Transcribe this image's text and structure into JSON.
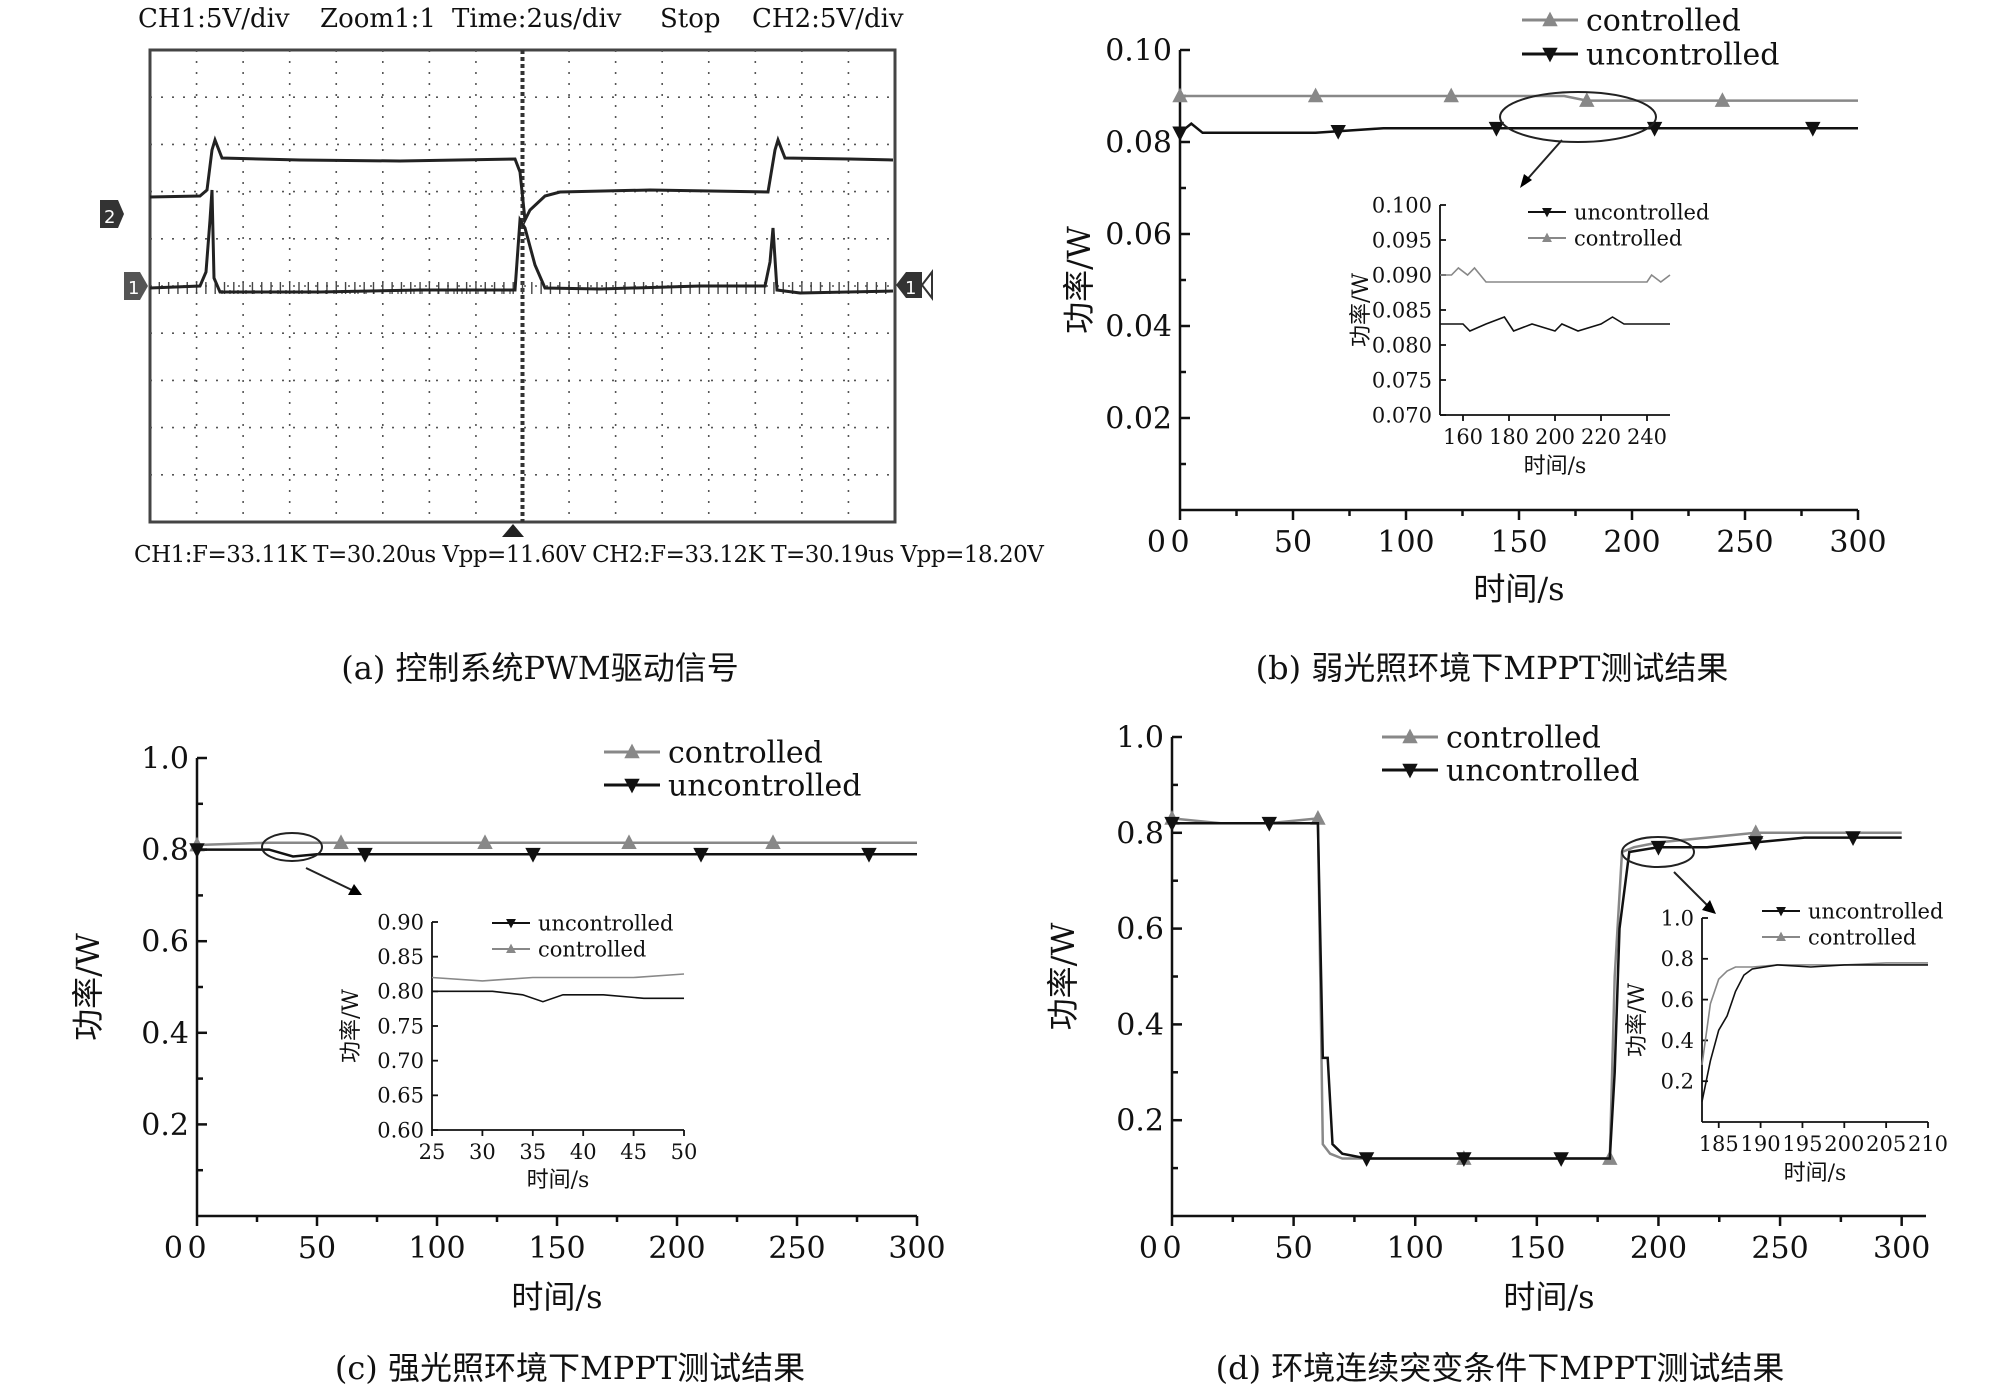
{
  "figure": {
    "captions": {
      "a": "(a) 控制系统PWM驱动信号",
      "b": "(b) 弱光照环境下MPPT测试结果",
      "c": "(c) 强光照环境下MPPT测试结果",
      "d": "(d) 环境连续突变条件下MPPT测试结果"
    }
  },
  "scope": {
    "top_labels": [
      "CH1:5V/div",
      "Zoom1:1",
      "Time:2us/div",
      "Stop",
      "CH2:5V/div"
    ],
    "bottom_label": "CH1:F=33.11K T=30.20us Vpp=11.60V  CH2:F=33.12K T=30.19us Vpp=18.20V",
    "ch1_marker": "1",
    "ch2_marker": "2",
    "right_marker": "1",
    "trace_color": "#222222",
    "grid_color": "#555555"
  },
  "colors": {
    "controlled": "#888888",
    "uncontrolled": "#111111",
    "axis": "#111111"
  },
  "chart_data": [
    {
      "id": "b",
      "type": "line",
      "xlabel": "时间/s",
      "ylabel": "功率/W",
      "xlim": [
        0,
        300
      ],
      "ylim": [
        0,
        0.1
      ],
      "xticks": [
        0,
        50,
        100,
        150,
        200,
        250,
        300
      ],
      "yticks": [
        0.02,
        0.04,
        0.06,
        0.08,
        0.1
      ],
      "ytick_labels": [
        "0.02",
        "0.04",
        "0.06",
        "0.08",
        "0.10"
      ],
      "legend": "top",
      "series": [
        {
          "name": "controlled",
          "marker": "triangle-up",
          "x": [
            0,
            20,
            40,
            60,
            80,
            100,
            120,
            140,
            160,
            170,
            180,
            200,
            220,
            240,
            260,
            280,
            300
          ],
          "y": [
            0.09,
            0.09,
            0.09,
            0.09,
            0.09,
            0.09,
            0.09,
            0.09,
            0.09,
            0.09,
            0.089,
            0.089,
            0.089,
            0.089,
            0.089,
            0.089,
            0.089
          ],
          "marker_x": [
            0,
            60,
            120,
            180,
            240
          ]
        },
        {
          "name": "uncontrolled",
          "marker": "triangle-down",
          "x": [
            0,
            5,
            10,
            30,
            60,
            90,
            120,
            150,
            180,
            210,
            240,
            270,
            300
          ],
          "y": [
            0.082,
            0.084,
            0.082,
            0.082,
            0.082,
            0.083,
            0.083,
            0.083,
            0.083,
            0.083,
            0.083,
            0.083,
            0.083
          ],
          "marker_x": [
            0,
            70,
            140,
            210,
            280
          ]
        }
      ],
      "inset": {
        "xlabel": "时间/s",
        "ylabel": "功率/W",
        "xlim": [
          150,
          250
        ],
        "ylim": [
          0.07,
          0.1
        ],
        "xticks": [
          160,
          180,
          200,
          220,
          240
        ],
        "yticks": [
          0.07,
          0.075,
          0.08,
          0.085,
          0.09,
          0.095,
          0.1
        ],
        "ytick_labels": [
          "0.070",
          "0.075",
          "0.080",
          "0.085",
          "0.090",
          "0.095",
          "0.100"
        ],
        "legend_order": [
          "uncontrolled",
          "controlled"
        ],
        "series": [
          {
            "name": "controlled",
            "x": [
              150,
              155,
              158,
              162,
              165,
              170,
              180,
              200,
              210,
              240,
              242,
              246,
              250
            ],
            "y": [
              0.09,
              0.09,
              0.091,
              0.09,
              0.091,
              0.089,
              0.089,
              0.089,
              0.089,
              0.089,
              0.09,
              0.089,
              0.09
            ]
          },
          {
            "name": "uncontrolled",
            "x": [
              150,
              160,
              163,
              170,
              178,
              182,
              190,
              200,
              203,
              210,
              220,
              225,
              230,
              240,
              250
            ],
            "y": [
              0.083,
              0.083,
              0.082,
              0.083,
              0.084,
              0.082,
              0.083,
              0.082,
              0.083,
              0.082,
              0.083,
              0.084,
              0.083,
              0.083,
              0.083
            ]
          }
        ]
      }
    },
    {
      "id": "c",
      "type": "line",
      "xlabel": "时间/s",
      "ylabel": "功率/W",
      "xlim": [
        0,
        300
      ],
      "ylim": [
        0,
        1.0
      ],
      "xticks": [
        0,
        50,
        100,
        150,
        200,
        250,
        300
      ],
      "yticks": [
        0.2,
        0.4,
        0.6,
        0.8,
        1.0
      ],
      "ytick_labels": [
        "0.2",
        "0.4",
        "0.6",
        "0.8",
        "1.0"
      ],
      "legend": "top-right",
      "series": [
        {
          "name": "controlled",
          "marker": "triangle-up",
          "x": [
            0,
            30,
            60,
            90,
            120,
            150,
            180,
            210,
            240,
            270,
            300
          ],
          "y": [
            0.81,
            0.815,
            0.815,
            0.815,
            0.815,
            0.815,
            0.815,
            0.815,
            0.815,
            0.815,
            0.815
          ],
          "marker_x": [
            0,
            60,
            120,
            180,
            240
          ]
        },
        {
          "name": "uncontrolled",
          "marker": "triangle-down",
          "x": [
            0,
            10,
            30,
            40,
            50,
            70,
            100,
            130,
            160,
            190,
            220,
            250,
            280,
            300
          ],
          "y": [
            0.8,
            0.8,
            0.8,
            0.785,
            0.79,
            0.79,
            0.79,
            0.79,
            0.79,
            0.79,
            0.79,
            0.79,
            0.79,
            0.79
          ],
          "marker_x": [
            0,
            70,
            140,
            210,
            280
          ]
        }
      ],
      "inset": {
        "xlabel": "时间/s",
        "ylabel": "功率/W",
        "xlim": [
          25,
          50
        ],
        "ylim": [
          0.6,
          0.9
        ],
        "xticks": [
          25,
          30,
          35,
          40,
          45,
          50
        ],
        "yticks": [
          0.6,
          0.65,
          0.7,
          0.75,
          0.8,
          0.85,
          0.9
        ],
        "ytick_labels": [
          "0.60",
          "0.65",
          "0.70",
          "0.75",
          "0.80",
          "0.85",
          "0.90"
        ],
        "legend_order": [
          "uncontrolled",
          "controlled"
        ],
        "series": [
          {
            "name": "controlled",
            "x": [
              25,
              30,
              35,
              40,
              45,
              50
            ],
            "y": [
              0.82,
              0.815,
              0.82,
              0.82,
              0.82,
              0.825
            ]
          },
          {
            "name": "uncontrolled",
            "x": [
              25,
              28,
              31,
              34,
              36,
              38,
              42,
              46,
              50
            ],
            "y": [
              0.8,
              0.8,
              0.8,
              0.795,
              0.785,
              0.795,
              0.795,
              0.79,
              0.79
            ]
          }
        ]
      }
    },
    {
      "id": "d",
      "type": "line",
      "xlabel": "时间/s",
      "ylabel": "功率/W",
      "xlim": [
        0,
        310
      ],
      "ylim": [
        0,
        1.0
      ],
      "xticks": [
        0,
        50,
        100,
        150,
        200,
        250,
        300
      ],
      "yticks": [
        0.2,
        0.4,
        0.6,
        0.8,
        1.0
      ],
      "ytick_labels": [
        "0.2",
        "0.4",
        "0.6",
        "0.8",
        "1.0"
      ],
      "legend": "top",
      "series": [
        {
          "name": "controlled",
          "marker": "triangle-up",
          "x": [
            0,
            20,
            40,
            60,
            62,
            65,
            70,
            80,
            100,
            120,
            140,
            160,
            180,
            182,
            185,
            190,
            200,
            220,
            240,
            260,
            280,
            300
          ],
          "y": [
            0.83,
            0.82,
            0.82,
            0.83,
            0.15,
            0.13,
            0.12,
            0.12,
            0.12,
            0.12,
            0.12,
            0.12,
            0.12,
            0.5,
            0.76,
            0.77,
            0.78,
            0.79,
            0.8,
            0.8,
            0.8,
            0.8
          ],
          "marker_x": [
            0,
            60,
            120,
            180,
            240
          ]
        },
        {
          "name": "uncontrolled",
          "marker": "triangle-down",
          "x": [
            0,
            20,
            40,
            60,
            62,
            64,
            66,
            70,
            80,
            100,
            120,
            140,
            160,
            180,
            182,
            184,
            188,
            200,
            220,
            240,
            260,
            280,
            300
          ],
          "y": [
            0.82,
            0.82,
            0.82,
            0.82,
            0.33,
            0.33,
            0.15,
            0.13,
            0.12,
            0.12,
            0.12,
            0.12,
            0.12,
            0.12,
            0.3,
            0.6,
            0.76,
            0.77,
            0.77,
            0.78,
            0.79,
            0.79,
            0.79
          ],
          "marker_x": [
            0,
            40,
            80,
            120,
            160,
            200,
            240,
            280
          ]
        }
      ],
      "inset": {
        "xlabel": "时间/s",
        "ylabel": "功率/W",
        "xlim": [
          183,
          210
        ],
        "ylim": [
          0.0,
          1.0
        ],
        "xticks": [
          185,
          190,
          195,
          200,
          205,
          210
        ],
        "yticks": [
          0.2,
          0.4,
          0.6,
          0.8,
          1.0
        ],
        "ytick_labels": [
          "0.2",
          "0.4",
          "0.6",
          "0.8",
          "1.0"
        ],
        "legend_order": [
          "uncontrolled",
          "controlled"
        ],
        "series": [
          {
            "name": "controlled",
            "x": [
              183,
              184,
              185,
              186,
              187,
              189,
              192,
              196,
              200,
              205,
              210
            ],
            "y": [
              0.28,
              0.58,
              0.7,
              0.74,
              0.76,
              0.76,
              0.77,
              0.77,
              0.77,
              0.78,
              0.78
            ]
          },
          {
            "name": "uncontrolled",
            "x": [
              183,
              184,
              185,
              186,
              187,
              188,
              189,
              192,
              196,
              200,
              205,
              210
            ],
            "y": [
              0.1,
              0.3,
              0.45,
              0.52,
              0.64,
              0.72,
              0.75,
              0.77,
              0.76,
              0.77,
              0.77,
              0.77
            ]
          }
        ]
      }
    }
  ]
}
